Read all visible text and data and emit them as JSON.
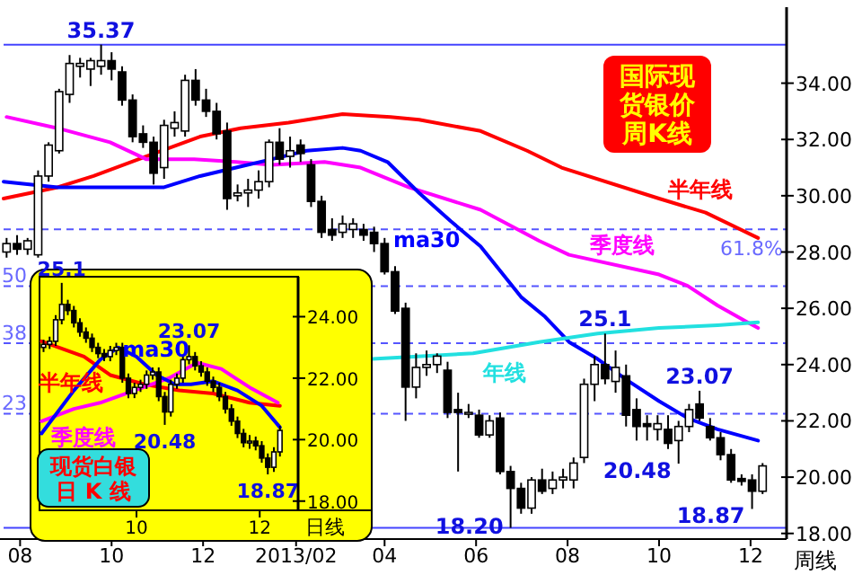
{
  "chart_data": [
    {
      "type": "candlestick",
      "title": "国际现货银价周K线",
      "xlabel": "周线",
      "xlim": [
        "2012-07-21",
        "2013-12-25"
      ],
      "xticks": [
        {
          "value": "2012-08-01",
          "label": "08"
        },
        {
          "value": "2012-10-01",
          "label": "10"
        },
        {
          "value": "2012-12-01",
          "label": "12"
        },
        {
          "value": "2013-02-01",
          "label": "2013/02"
        },
        {
          "value": "2013-04-01",
          "label": "04"
        },
        {
          "value": "2013-06-01",
          "label": "06"
        },
        {
          "value": "2013-08-01",
          "label": "08"
        },
        {
          "value": "2013-10-01",
          "label": "10"
        },
        {
          "value": "2013-12-01",
          "label": "12"
        }
      ],
      "ylim": [
        17.8,
        36.7
      ],
      "yticks": [
        {
          "value": 18,
          "label": "18.00"
        },
        {
          "value": 20,
          "label": "20.00"
        },
        {
          "value": 22,
          "label": "22.00"
        },
        {
          "value": 24,
          "label": "24.00"
        },
        {
          "value": 26,
          "label": "26.00"
        },
        {
          "value": 28,
          "label": "28.00"
        },
        {
          "value": 30,
          "label": "30.00"
        },
        {
          "value": 32,
          "label": "32.00"
        },
        {
          "value": 34,
          "label": "34.00"
        }
      ],
      "x": [
        "2012-07-23",
        "2012-07-30",
        "2012-08-06",
        "2012-08-13",
        "2012-08-20",
        "2012-08-27",
        "2012-09-03",
        "2012-09-10",
        "2012-09-17",
        "2012-09-24",
        "2012-10-01",
        "2012-10-08",
        "2012-10-15",
        "2012-10-22",
        "2012-10-29",
        "2012-11-05",
        "2012-11-12",
        "2012-11-19",
        "2012-11-26",
        "2012-12-03",
        "2012-12-10",
        "2012-12-17",
        "2012-12-24",
        "2012-12-31",
        "2013-01-07",
        "2013-01-14",
        "2013-01-21",
        "2013-01-28",
        "2013-02-04",
        "2013-02-11",
        "2013-02-18",
        "2013-02-25",
        "2013-03-04",
        "2013-03-11",
        "2013-03-18",
        "2013-03-25",
        "2013-04-01",
        "2013-04-08",
        "2013-04-15",
        "2013-04-22",
        "2013-04-29",
        "2013-05-06",
        "2013-05-13",
        "2013-05-20",
        "2013-05-27",
        "2013-06-03",
        "2013-06-10",
        "2013-06-17",
        "2013-06-24",
        "2013-07-01",
        "2013-07-08",
        "2013-07-15",
        "2013-07-22",
        "2013-07-29",
        "2013-08-05",
        "2013-08-12",
        "2013-08-19",
        "2013-08-26",
        "2013-09-02",
        "2013-09-09",
        "2013-09-16",
        "2013-09-23",
        "2013-09-30",
        "2013-10-07",
        "2013-10-14",
        "2013-10-21",
        "2013-10-28",
        "2013-11-04",
        "2013-11-11",
        "2013-11-18",
        "2013-11-25",
        "2013-12-02",
        "2013-12-09"
      ],
      "ohlc": [
        [
          28.0,
          28.5,
          27.8,
          28.3
        ],
        [
          28.3,
          28.6,
          27.9,
          28.1
        ],
        [
          28.1,
          28.5,
          27.9,
          28.4
        ],
        [
          27.9,
          30.9,
          27.8,
          30.7
        ],
        [
          30.7,
          31.9,
          30.5,
          31.8
        ],
        [
          31.6,
          33.8,
          31.5,
          33.7
        ],
        [
          33.6,
          35.0,
          33.3,
          34.7
        ],
        [
          34.6,
          34.9,
          34.2,
          34.7
        ],
        [
          34.5,
          34.9,
          33.9,
          34.8
        ],
        [
          34.6,
          35.37,
          34.3,
          34.8
        ],
        [
          34.8,
          35.1,
          34.1,
          34.5
        ],
        [
          34.4,
          34.6,
          33.2,
          33.4
        ],
        [
          33.4,
          33.6,
          31.9,
          32.1
        ],
        [
          32.2,
          32.5,
          31.7,
          31.9
        ],
        [
          31.9,
          32.1,
          30.4,
          30.8
        ],
        [
          31.0,
          32.7,
          30.6,
          32.5
        ],
        [
          32.4,
          33.0,
          32.1,
          32.6
        ],
        [
          32.3,
          34.3,
          32.1,
          34.1
        ],
        [
          34.1,
          34.5,
          33.2,
          33.4
        ],
        [
          33.4,
          33.8,
          32.8,
          33.0
        ],
        [
          33.0,
          33.3,
          32.0,
          32.2
        ],
        [
          32.3,
          32.6,
          29.5,
          29.9
        ],
        [
          30.0,
          30.4,
          29.8,
          30.1
        ],
        [
          30.1,
          30.6,
          29.6,
          30.2
        ],
        [
          30.2,
          30.9,
          29.9,
          30.5
        ],
        [
          30.5,
          32.0,
          30.3,
          31.9
        ],
        [
          31.9,
          32.4,
          31.1,
          31.3
        ],
        [
          31.4,
          32.1,
          31.0,
          31.6
        ],
        [
          31.8,
          32.0,
          31.2,
          31.5
        ],
        [
          31.1,
          31.3,
          29.6,
          29.8
        ],
        [
          29.8,
          30.0,
          28.5,
          28.7
        ],
        [
          28.8,
          29.2,
          28.4,
          28.6
        ],
        [
          28.7,
          29.3,
          28.5,
          29.0
        ],
        [
          28.8,
          29.2,
          28.5,
          29.0
        ],
        [
          28.8,
          29.0,
          28.4,
          28.6
        ],
        [
          28.7,
          28.9,
          28.0,
          28.3
        ],
        [
          28.3,
          28.5,
          27.2,
          27.3
        ],
        [
          27.3,
          27.5,
          25.8,
          25.9
        ],
        [
          26.0,
          26.2,
          22.0,
          23.2
        ],
        [
          23.2,
          24.4,
          22.8,
          23.9
        ],
        [
          23.9,
          24.5,
          23.6,
          24.0
        ],
        [
          24.0,
          24.4,
          23.7,
          24.3
        ],
        [
          23.8,
          24.1,
          22.1,
          22.3
        ],
        [
          22.4,
          23.0,
          20.2,
          22.3
        ],
        [
          22.3,
          22.6,
          22.1,
          22.3
        ],
        [
          22.2,
          22.4,
          21.4,
          21.5
        ],
        [
          21.5,
          22.2,
          21.4,
          22.0
        ],
        [
          22.1,
          22.3,
          20.1,
          20.2
        ],
        [
          20.2,
          20.4,
          18.2,
          19.6
        ],
        [
          19.6,
          19.8,
          18.7,
          18.9
        ],
        [
          18.9,
          20.0,
          18.7,
          19.9
        ],
        [
          19.9,
          20.3,
          19.4,
          19.5
        ],
        [
          19.6,
          20.2,
          19.4,
          19.9
        ],
        [
          19.9,
          20.3,
          19.6,
          20.0
        ],
        [
          19.9,
          20.7,
          19.6,
          20.5
        ],
        [
          20.7,
          23.5,
          20.5,
          23.3
        ],
        [
          23.3,
          24.3,
          22.7,
          24.0
        ],
        [
          24.0,
          25.1,
          23.3,
          23.5
        ],
        [
          23.4,
          24.5,
          23.0,
          23.9
        ],
        [
          23.6,
          24.0,
          21.8,
          22.2
        ],
        [
          22.4,
          22.8,
          21.3,
          21.8
        ],
        [
          21.9,
          22.2,
          21.3,
          21.8
        ],
        [
          21.7,
          22.2,
          21.3,
          21.9
        ],
        [
          21.7,
          22.2,
          21.0,
          21.2
        ],
        [
          21.3,
          22.0,
          20.48,
          21.8
        ],
        [
          21.8,
          22.6,
          21.6,
          22.4
        ],
        [
          22.6,
          23.07,
          22.0,
          22.1
        ],
        [
          21.8,
          22.1,
          21.3,
          21.4
        ],
        [
          21.4,
          21.6,
          20.6,
          20.8
        ],
        [
          20.8,
          21.0,
          19.8,
          19.9
        ],
        [
          19.95,
          20.1,
          19.7,
          19.85
        ],
        [
          19.9,
          20.1,
          18.87,
          19.5
        ],
        [
          19.5,
          20.5,
          19.4,
          20.4
        ]
      ],
      "series": [
        {
          "name": "半年线",
          "type": "line",
          "color": "#ff0000",
          "x": [
            "2012-07-21",
            "2012-08-26",
            "2012-09-19",
            "2012-10-24",
            "2012-11-29",
            "2012-12-26",
            "2013-01-27",
            "2013-03-04",
            "2013-04-05",
            "2013-04-24",
            "2013-06-04",
            "2013-07-05",
            "2013-07-28",
            "2013-10-01",
            "2013-11-01",
            "2013-12-06"
          ],
          "values": [
            29.9,
            30.3,
            30.7,
            31.4,
            32.1,
            32.4,
            32.6,
            32.9,
            32.8,
            32.7,
            32.3,
            31.6,
            31.0,
            29.9,
            29.4,
            28.5
          ]
        },
        {
          "name": "季度线",
          "type": "line",
          "color": "#ff00ff",
          "x": [
            "2012-07-23",
            "2012-08-26",
            "2012-09-30",
            "2012-10-24",
            "2012-11-25",
            "2012-12-23",
            "2013-01-16",
            "2013-02-20",
            "2013-03-16",
            "2013-04-17",
            "2013-06-04",
            "2013-07-13",
            "2013-08-02",
            "2013-10-01",
            "2013-10-20",
            "2013-11-09",
            "2013-11-29",
            "2013-12-06"
          ],
          "values": [
            32.8,
            32.4,
            31.9,
            31.3,
            31.3,
            31.2,
            31.1,
            31.2,
            31.0,
            30.3,
            29.5,
            28.4,
            27.9,
            27.2,
            26.8,
            26.1,
            25.5,
            25.3
          ]
        },
        {
          "name": "ma30",
          "type": "line",
          "color": "#0000ff",
          "x": [
            "2012-07-21",
            "2012-08-26",
            "2012-09-30",
            "2012-11-05",
            "2012-11-29",
            "2012-12-23",
            "2013-01-16",
            "2013-02-08",
            "2013-03-04",
            "2013-03-16",
            "2013-04-03",
            "2013-04-24",
            "2013-05-15",
            "2013-06-04",
            "2013-06-16",
            "2013-07-01",
            "2013-07-17",
            "2013-08-02",
            "2013-08-21",
            "2013-09-11",
            "2013-10-01",
            "2013-10-20",
            "2013-11-09",
            "2013-12-06"
          ],
          "values": [
            30.5,
            30.3,
            30.3,
            30.3,
            30.7,
            31.0,
            31.3,
            31.6,
            31.7,
            31.6,
            31.2,
            30.1,
            29.1,
            28.2,
            27.4,
            26.4,
            25.7,
            24.8,
            24.2,
            23.4,
            22.7,
            22.1,
            21.7,
            21.3
          ]
        },
        {
          "name": "年线",
          "type": "line",
          "color": "#22e0e0",
          "x": [
            "2013-03-24",
            "2013-05-30",
            "2013-07-13",
            "2013-08-21",
            "2013-10-01",
            "2013-11-09",
            "2013-12-06"
          ],
          "values": [
            24.2,
            24.4,
            24.8,
            25.1,
            25.3,
            25.4,
            25.5
          ]
        }
      ],
      "ref_lines": [
        {
          "axis": "y",
          "value": 35.37,
          "color": "#4444ff",
          "line_style": "solid"
        },
        {
          "axis": "y",
          "value": 28.81,
          "color": "#5555ff",
          "line_style": "dashed"
        },
        {
          "axis": "y",
          "value": 26.785,
          "color": "#5555ff",
          "line_style": "dashed"
        },
        {
          "axis": "y",
          "value": 24.76,
          "color": "#5555ff",
          "line_style": "dashed"
        },
        {
          "axis": "y",
          "value": 22.25,
          "color": "#5555ff",
          "line_style": "dashed"
        },
        {
          "axis": "y",
          "value": 18.2,
          "color": "#4444ff",
          "line_style": "solid"
        }
      ],
      "annotations": [
        "61.8%",
        "50",
        "38",
        "23",
        {
          "text": "35.37",
          "x": "2012-09-24",
          "y": 35.37
        },
        {
          "text": "25.1",
          "x": "2013-08-26",
          "y": 25.1
        },
        {
          "text": "23.07",
          "x": "2013-10-28",
          "y": 23.07
        },
        {
          "text": "20.48",
          "x": "2013-10-14",
          "y": 20.48
        },
        {
          "text": "18.20",
          "x": "2013-06-24",
          "y": 18.2
        },
        {
          "text": "18.87",
          "x": "2013-12-02",
          "y": 18.87
        }
      ]
    },
    {
      "type": "candlestick",
      "title": "现货白银日 K 线",
      "xlabel": "日线",
      "xlim": [
        "2013-08-14",
        "2013-12-20"
      ],
      "xticks": [
        {
          "value": "2013-10-01",
          "label": "10"
        },
        {
          "value": "2013-12-01",
          "label": "12"
        }
      ],
      "ylim": [
        17.7,
        25.3
      ],
      "yticks": [
        {
          "value": 18,
          "label": "18.00"
        },
        {
          "value": 20,
          "label": "20.00"
        },
        {
          "value": 22,
          "label": "22.00"
        },
        {
          "value": 24,
          "label": "24.00"
        }
      ],
      "x": [
        "2013-08-16",
        "2013-08-19",
        "2013-08-22",
        "2013-08-25",
        "2013-08-28",
        "2013-08-31",
        "2013-09-03",
        "2013-09-06",
        "2013-09-09",
        "2013-09-12",
        "2013-09-15",
        "2013-09-18",
        "2013-09-21",
        "2013-09-24",
        "2013-09-27",
        "2013-09-30",
        "2013-10-03",
        "2013-10-06",
        "2013-10-09",
        "2013-10-12",
        "2013-10-15",
        "2013-10-18",
        "2013-10-21",
        "2013-10-24",
        "2013-10-27",
        "2013-10-30",
        "2013-11-02",
        "2013-11-05",
        "2013-11-08",
        "2013-11-11",
        "2013-11-14",
        "2013-11-17",
        "2013-11-20",
        "2013-11-23",
        "2013-11-26",
        "2013-11-29",
        "2013-12-02",
        "2013-12-05",
        "2013-12-08",
        "2013-12-11"
      ],
      "ohlc": [
        [
          23.0,
          23.25,
          22.85,
          23.1
        ],
        [
          23.1,
          23.35,
          22.95,
          23.2
        ],
        [
          23.2,
          24.05,
          23.05,
          23.9
        ],
        [
          23.9,
          25.1,
          23.75,
          24.4
        ],
        [
          24.4,
          24.55,
          24.05,
          24.2
        ],
        [
          24.2,
          24.35,
          23.65,
          23.8
        ],
        [
          23.8,
          23.95,
          23.35,
          23.5
        ],
        [
          23.5,
          23.65,
          23.15,
          23.3
        ],
        [
          23.3,
          23.45,
          22.85,
          23.0
        ],
        [
          23.0,
          23.15,
          22.65,
          22.8
        ],
        [
          22.8,
          22.95,
          22.55,
          22.7
        ],
        [
          22.7,
          23.05,
          22.55,
          22.9
        ],
        [
          22.9,
          23.15,
          22.75,
          23.0
        ],
        [
          23.0,
          23.15,
          21.85,
          22.0
        ],
        [
          22.0,
          22.15,
          21.35,
          21.5
        ],
        [
          21.5,
          21.85,
          21.35,
          21.7
        ],
        [
          21.7,
          21.95,
          21.55,
          21.8
        ],
        [
          21.8,
          22.25,
          21.65,
          22.1
        ],
        [
          22.1,
          22.35,
          21.95,
          22.2
        ],
        [
          22.2,
          22.35,
          21.25,
          21.4
        ],
        [
          21.4,
          21.55,
          20.48,
          20.9
        ],
        [
          20.9,
          21.95,
          20.75,
          21.8
        ],
        [
          21.8,
          22.15,
          21.65,
          22.0
        ],
        [
          22.0,
          22.75,
          21.85,
          22.6
        ],
        [
          22.6,
          23.07,
          22.45,
          22.7
        ],
        [
          22.7,
          22.85,
          22.25,
          22.4
        ],
        [
          22.4,
          22.55,
          22.05,
          22.2
        ],
        [
          22.2,
          22.35,
          21.75,
          21.9
        ],
        [
          21.9,
          22.05,
          21.55,
          21.7
        ],
        [
          21.7,
          21.85,
          21.25,
          21.4
        ],
        [
          21.4,
          21.55,
          20.85,
          21.0
        ],
        [
          21.0,
          21.15,
          20.45,
          20.6
        ],
        [
          20.6,
          20.75,
          20.05,
          20.2
        ],
        [
          20.2,
          20.35,
          19.75,
          19.9
        ],
        [
          19.9,
          20.15,
          19.7,
          19.95
        ],
        [
          19.95,
          20.1,
          19.65,
          19.8
        ],
        [
          19.8,
          19.95,
          19.25,
          19.4
        ],
        [
          19.4,
          19.55,
          18.87,
          19.1
        ],
        [
          19.1,
          19.75,
          18.95,
          19.6
        ],
        [
          19.6,
          20.45,
          19.45,
          20.3
        ]
      ],
      "series": [
        {
          "name": "半年线",
          "type": "line",
          "color": "#ff0000",
          "x": [
            "2013-08-15",
            "2013-09-05",
            "2013-09-18",
            "2013-10-05",
            "2013-10-22",
            "2013-11-08",
            "2013-11-26",
            "2013-12-11"
          ],
          "values": [
            23.2,
            22.7,
            22.1,
            21.8,
            21.6,
            21.5,
            21.2,
            21.1
          ]
        },
        {
          "name": "季度线",
          "type": "line",
          "color": "#ff00ff",
          "x": [
            "2013-08-15",
            "2013-08-31",
            "2013-09-13",
            "2013-09-30",
            "2013-10-17",
            "2013-10-31",
            "2013-11-12",
            "2013-11-26",
            "2013-12-10"
          ],
          "values": [
            20.6,
            21.0,
            21.2,
            21.6,
            22.0,
            22.5,
            22.3,
            21.7,
            21.2
          ]
        },
        {
          "name": "ma30",
          "type": "line",
          "color": "#0000ff",
          "x": [
            "2013-08-15",
            "2013-08-31",
            "2013-09-13",
            "2013-09-22",
            "2013-10-01",
            "2013-10-11",
            "2013-10-20",
            "2013-10-28",
            "2013-11-08",
            "2013-11-20",
            "2013-12-02",
            "2013-12-11"
          ],
          "values": [
            20.2,
            21.6,
            22.6,
            23.0,
            22.7,
            22.1,
            21.8,
            21.8,
            21.9,
            21.6,
            21.1,
            20.4
          ]
        }
      ],
      "annotations": [
        {
          "text": "25.1",
          "x": "2013-08-25",
          "y": 25.1
        },
        {
          "text": "23.07",
          "x": "2013-10-27",
          "y": 23.07
        },
        {
          "text": "20.48",
          "x": "2013-10-15",
          "y": 20.48
        },
        {
          "text": "18.87",
          "x": "2013-12-05",
          "y": 18.87
        }
      ]
    }
  ]
}
